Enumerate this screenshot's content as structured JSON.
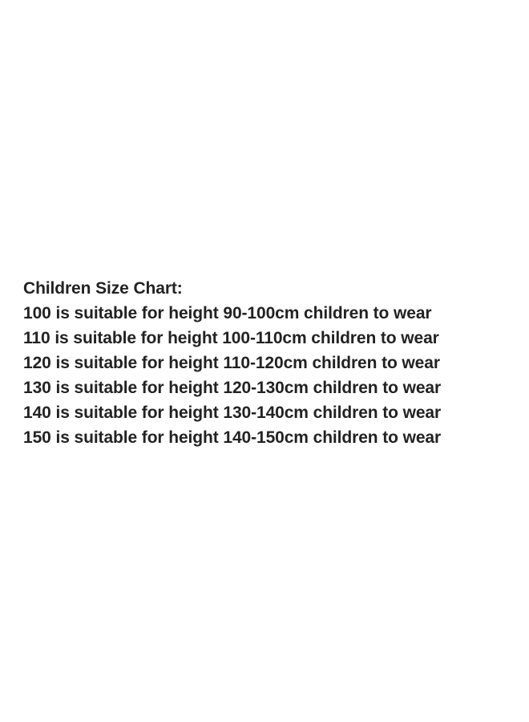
{
  "title": "Children Size Chart:",
  "lines": [
    "100 is suitable for height 90-100cm children to wear",
    "110 is suitable for height 100-110cm children to wear",
    "120 is suitable for height 110-120cm children to wear",
    "130 is suitable for height 120-130cm children to wear",
    "140 is suitable for height 130-140cm children to wear",
    "150 is suitable for height 140-150cm children to wear"
  ],
  "colors": {
    "text": "#222222",
    "background": "#ffffff"
  }
}
